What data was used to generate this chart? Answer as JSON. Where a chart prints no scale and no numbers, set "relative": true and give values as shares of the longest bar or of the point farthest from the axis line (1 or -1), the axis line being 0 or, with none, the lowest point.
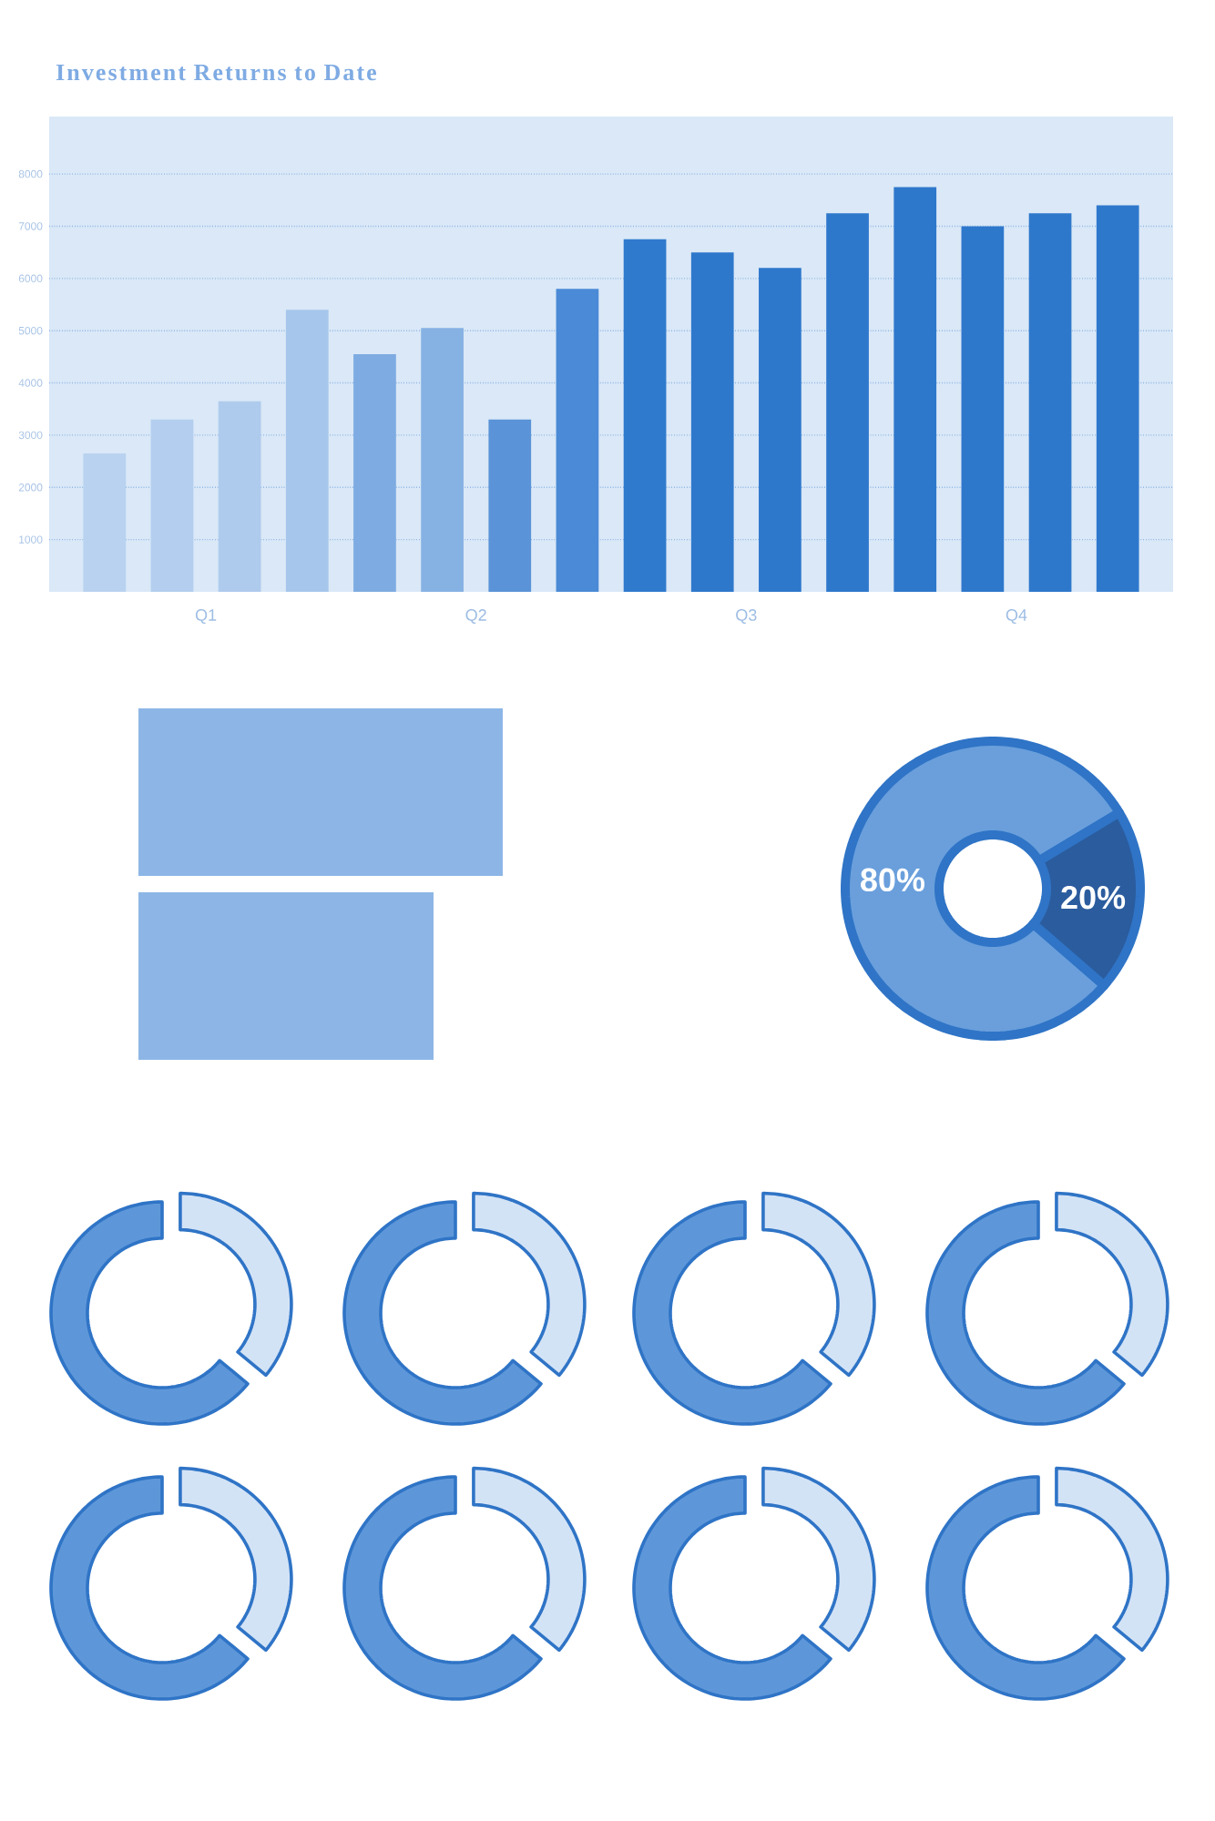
{
  "chart_data": [
    {
      "type": "bar",
      "title": "Investment Returns to Date",
      "categories": [
        "Q1",
        "Q2",
        "Q3",
        "Q4"
      ],
      "series": [
        {
          "values": [
            2650,
            4550,
            6750,
            7750
          ],
          "colors": [
            "#b9d2ef",
            "#7eabe1",
            "#2f7acd",
            "#2e78cc"
          ]
        },
        {
          "values": [
            3300,
            5050,
            6500,
            7000
          ],
          "colors": [
            "#b3ceee",
            "#86b1e3",
            "#2e78cc",
            "#2e78cc"
          ]
        },
        {
          "values": [
            3650,
            3300,
            6200,
            7250
          ],
          "colors": [
            "#aecbed",
            "#5a93d7",
            "#2e78cc",
            "#2e78cc"
          ]
        },
        {
          "values": [
            5400,
            5800,
            7250,
            7400
          ],
          "colors": [
            "#a6c6eb",
            "#4a8ad6",
            "#2e78cc",
            "#2e78cc"
          ]
        }
      ],
      "ylim": [
        0,
        9100
      ],
      "yticks": [
        1000,
        2000,
        3000,
        4000,
        5000,
        6000,
        7000,
        8000
      ],
      "grid": "y"
    },
    {
      "type": "bar",
      "orientation": "horizontal",
      "relative": true,
      "categories": [
        null,
        null
      ],
      "values": [
        1,
        0.81
      ],
      "color": "#8db6e7"
    },
    {
      "type": "donut",
      "categories": [
        null,
        null
      ],
      "values": [
        80,
        20
      ],
      "colors": [
        "#6a9fdc",
        "#2b5c9e"
      ],
      "value_labels": [
        "80%",
        "20%"
      ]
    },
    {
      "type": "donut",
      "categories": [
        null,
        null
      ],
      "values": [
        36,
        64
      ],
      "colors": [
        "#d3e3f6",
        "#5e97d9"
      ]
    },
    {
      "type": "donut",
      "categories": [
        null,
        null
      ],
      "values": [
        36,
        64
      ],
      "colors": [
        "#d3e3f6",
        "#5e97d9"
      ]
    },
    {
      "type": "donut",
      "categories": [
        null,
        null
      ],
      "values": [
        36,
        64
      ],
      "colors": [
        "#d3e3f6",
        "#5e97d9"
      ]
    },
    {
      "type": "donut",
      "categories": [
        null,
        null
      ],
      "values": [
        36,
        64
      ],
      "colors": [
        "#d3e3f6",
        "#5e97d9"
      ]
    },
    {
      "type": "donut",
      "categories": [
        null,
        null
      ],
      "values": [
        36,
        64
      ],
      "colors": [
        "#d3e3f6",
        "#5e97d9"
      ]
    },
    {
      "type": "donut",
      "categories": [
        null,
        null
      ],
      "values": [
        36,
        64
      ],
      "colors": [
        "#d3e3f6",
        "#5e97d9"
      ]
    },
    {
      "type": "donut",
      "categories": [
        null,
        null
      ],
      "values": [
        36,
        64
      ],
      "colors": [
        "#d3e3f6",
        "#5e97d9"
      ]
    },
    {
      "type": "donut",
      "categories": [
        null,
        null
      ],
      "values": [
        36,
        64
      ],
      "colors": [
        "#d3e3f6",
        "#5e97d9"
      ]
    }
  ]
}
